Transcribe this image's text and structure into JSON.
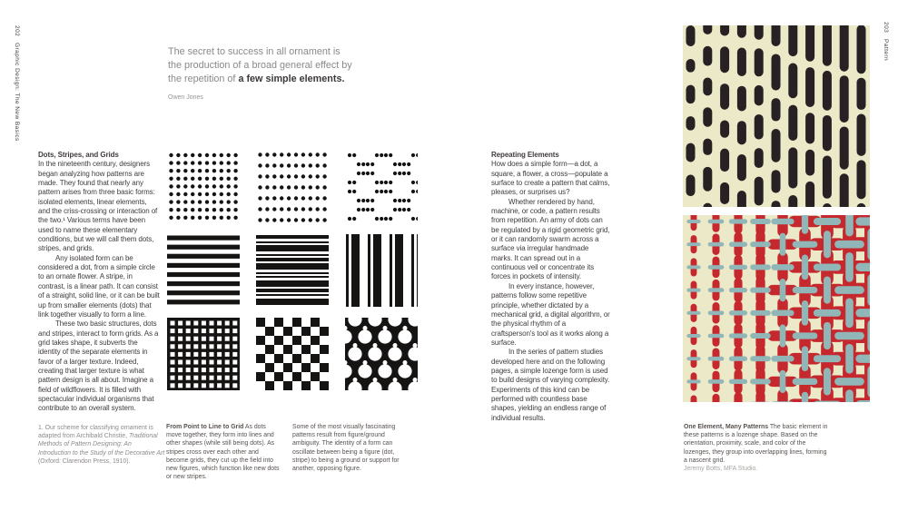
{
  "page_left": {
    "spine": "202   Graphic Design: The New Basics",
    "quote": {
      "line1": "The secret to success in all ornament is",
      "line2": "the production of a broad general effect by",
      "line3_pre": "the repetition of ",
      "line3_bold": "a few simple elements.",
      "attribution": "Owen Jones"
    },
    "article": {
      "title": "Dots, Stripes, and Grids",
      "para1": "In the nineteenth century, designers began analyzing how patterns are made. They found that nearly any pattern arises from three basic forms: isolated elements, linear elements, and the criss-crossing or interaction of the two.¹ Various terms have been used to name these elementary conditions, but we will call them dots, stripes, and grids.",
      "para2": "Any isolated form can be considered a dot, from a simple circle to an ornate flower. A stripe, in contrast, is a linear path. It can consist of a straight, solid line, or it can be built up from smaller elements (dots) that link together visually to form a line.",
      "para3": "These two basic structures, dots and stripes, interact to form grids. As a grid takes shape, it subverts the identity of the separate elements in favor of a larger texture. Indeed, creating that larger texture is what pattern design is all about. Imagine a field of wildflowers. It is filled with spectacular individual organisms that contribute to an overall system."
    },
    "footnote": {
      "pre": "1. Our scheme for classifying ornament is adapted from Archibald Christie, ",
      "italic": "Traditional Methods of Pattern Designing: An Introduction to the Study of the Decorative Art",
      "post": " (Oxford: Clarendon Press, 1910)."
    },
    "caption1": {
      "lead": "From Point to Line to Grid",
      "text": " As dots move together, they form into lines and other shapes (while still being dots). As stripes cross over each other and become grids, they cut up the field into new figures, which function like new dots or new stripes."
    },
    "caption2": "Some of the most visually fascinating patterns result from figure/ground ambiguity. The identity of a form can oscillate between being a figure (dot, stripe) to being a ground or support for another, opposing figure."
  },
  "page_right": {
    "spine": "203   Pattern",
    "article": {
      "title": "Repeating Elements",
      "para1": "How does a simple form—a dot, a square, a flower, a cross—populate a surface to create a pattern that calms, pleases, or surprises us?",
      "para2": "Whether rendered by hand, machine, or code, a pattern results from repetition. An army of dots can be regulated by a rigid geometric grid, or it can randomly swarm across a surface via irregular handmade marks. It can spread out in a continuous veil or concentrate its forces in pockets of intensity.",
      "para3": "In every instance, however, patterns follow some repetitive principle, whether dictated by a mechanical grid, a digital algorithm, or the physical rhythm of a craftsperson's tool as it works along a surface.",
      "para4": "In the series of pattern studies developed here and on the following pages, a simple lozenge form is used to build designs of varying complexity. Experiments of this kind can be performed with countless base shapes, yielding an endless range of individual results."
    },
    "caption": {
      "lead": "One Element, Many Patterns",
      "text": " The basic element in these patterns is a lozenge shape. Based on the orientation, proximity, scale, and color of the lozenges, they group into overlapping lines, forming a nascent grid.",
      "credit": "Jeremy Botts, MFA Studio."
    }
  },
  "patterns": {
    "grid": [
      "dot-grid",
      "dot-rows",
      "dot-clusters",
      "stripes-horizontal",
      "stripes-mixed",
      "stripes-vertical",
      "square-grid",
      "checkerboard",
      "woven-lattice"
    ],
    "right_top": "pills",
    "right_bottom": "lozenge-crosses"
  },
  "colors": {
    "black": "#161313",
    "ink": "#272123",
    "cream": "#ebe9c8",
    "red": "#c5282d",
    "blue": "#90b6b8",
    "white": "#ffffff"
  }
}
